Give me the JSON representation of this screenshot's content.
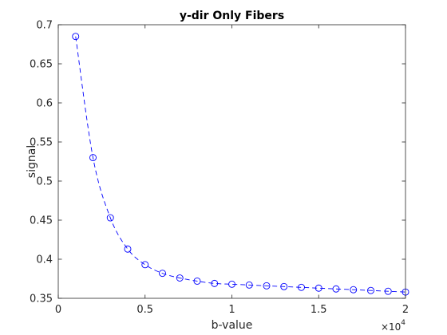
{
  "chart_data": {
    "type": "line",
    "title": "y-dir Only Fibers",
    "xlabel": "b-value",
    "ylabel": "signal",
    "x_exponent_label": {
      "base": "×10",
      "exponent": "4"
    },
    "xlim": [
      0,
      20000
    ],
    "ylim": [
      0.35,
      0.7
    ],
    "xticks": [
      0,
      5000,
      10000,
      15000,
      20000
    ],
    "xtick_labels": [
      "0",
      "0.5",
      "1",
      "1.5",
      "2"
    ],
    "yticks": [
      0.35,
      0.4,
      0.45,
      0.5,
      0.55,
      0.6,
      0.65,
      0.7
    ],
    "ytick_labels": [
      "0.35",
      "0.4",
      "0.45",
      "0.5",
      "0.55",
      "0.6",
      "0.65",
      "0.7"
    ],
    "grid": false,
    "series": [
      {
        "color": "#0000ff",
        "line_style": "dashed",
        "marker": "circle",
        "x": [
          1000,
          2000,
          3000,
          4000,
          5000,
          6000,
          7000,
          8000,
          9000,
          10000,
          11000,
          12000,
          13000,
          14000,
          15000,
          16000,
          17000,
          18000,
          19000,
          20000
        ],
        "y": [
          0.685,
          0.53,
          0.453,
          0.413,
          0.393,
          0.382,
          0.376,
          0.372,
          0.369,
          0.368,
          0.367,
          0.366,
          0.365,
          0.364,
          0.363,
          0.362,
          0.361,
          0.36,
          0.359,
          0.358
        ]
      }
    ]
  }
}
